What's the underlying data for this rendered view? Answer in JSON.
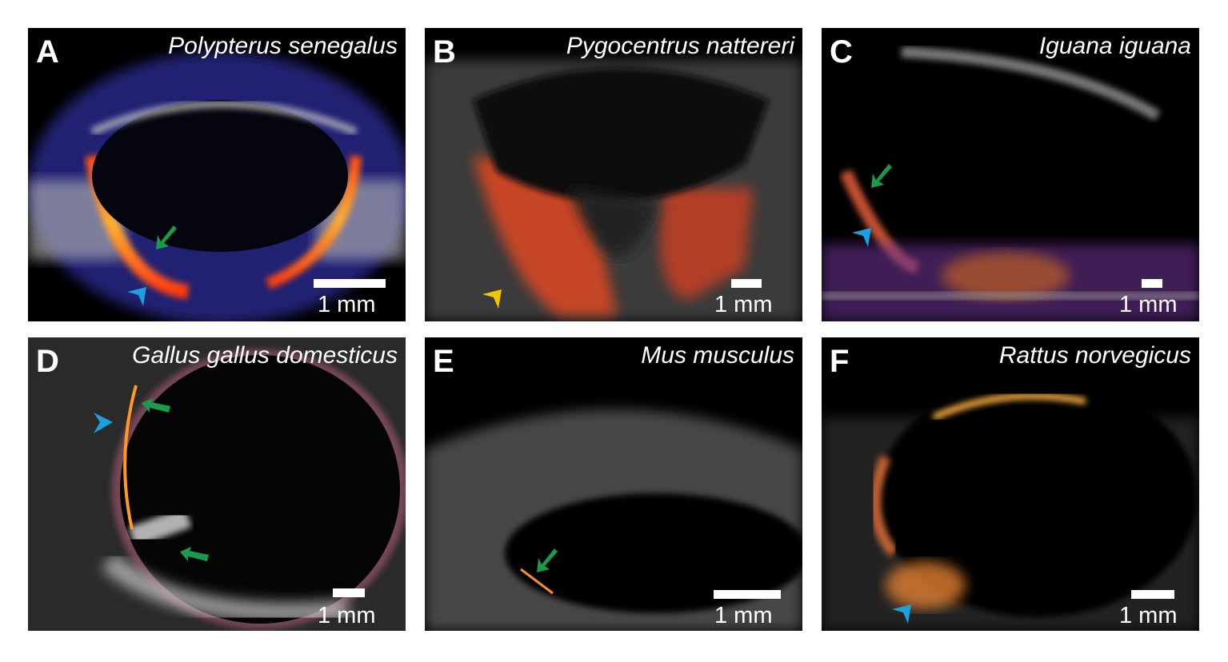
{
  "panels": [
    {
      "letter": "A",
      "species": "Polypterus senegalus",
      "scale": "1 mm",
      "arrows": [
        "green-arrow",
        "blue-arrowhead"
      ]
    },
    {
      "letter": "B",
      "species": "Pygocentrus nattereri",
      "scale": "1 mm",
      "arrows": [
        "yellow-arrowhead"
      ]
    },
    {
      "letter": "C",
      "species": "Iguana iguana",
      "scale": "1 mm",
      "arrows": [
        "green-arrow",
        "blue-arrowhead"
      ]
    },
    {
      "letter": "D",
      "species": "Gallus gallus domesticus",
      "scale": "1 mm",
      "arrows": [
        "green-arrow",
        "green-arrow",
        "blue-arrowhead"
      ]
    },
    {
      "letter": "E",
      "species": "Mus musculus",
      "scale": "1 mm",
      "arrows": [
        "green-arrow"
      ]
    },
    {
      "letter": "F",
      "species": "Rattus norvegicus",
      "scale": "1 mm",
      "arrows": [
        "blue-arrowhead"
      ]
    }
  ],
  "colors": {
    "green": "#1a9a4a",
    "blue": "#1aa0e0",
    "yellow": "#f0c800",
    "doppler_hot": "#ff6a1a",
    "doppler_blue": "#2a2aa0"
  }
}
